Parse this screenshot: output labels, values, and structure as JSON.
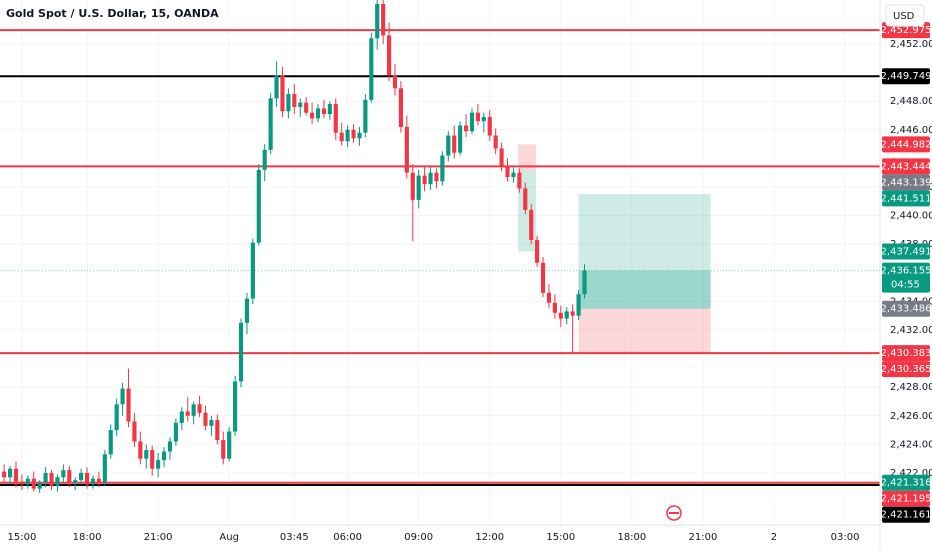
{
  "chart_data": {
    "type": "candlestick",
    "title": "Gold Spot / U.S. Dollar, 15, OANDA",
    "currency": "USD",
    "up_color": "#089981",
    "down_color": "#f23645",
    "ylim": [
      2418.36,
      2455.08
    ],
    "xlim": [
      -3.7,
      144.9
    ],
    "yticks": [
      {
        "value": 2422,
        "label": "2,422.000"
      },
      {
        "value": 2424,
        "label": "2,424.000"
      },
      {
        "value": 2426,
        "label": "2,426.000"
      },
      {
        "value": 2428,
        "label": "2,428.000"
      },
      {
        "value": 2432,
        "label": "2,432.000"
      },
      {
        "value": 2434,
        "label": "2,434.000"
      },
      {
        "value": 2438,
        "label": "2,438.000"
      },
      {
        "value": 2440,
        "label": "2,440.000"
      },
      {
        "value": 2442,
        "label": "2,442.000"
      },
      {
        "value": 2446,
        "label": "2,446.000"
      },
      {
        "value": 2448,
        "label": "2,448.000"
      },
      {
        "value": 2452,
        "label": "2,452.000"
      }
    ],
    "xticks": [
      {
        "value": 0,
        "label": "15:00"
      },
      {
        "value": 11,
        "label": "18:00"
      },
      {
        "value": 23,
        "label": "21:00"
      },
      {
        "value": 35,
        "label": "Aug"
      },
      {
        "value": 46,
        "label": "03:45"
      },
      {
        "value": 55,
        "label": "06:00"
      },
      {
        "value": 67,
        "label": "09:00"
      },
      {
        "value": 79,
        "label": "12:00"
      },
      {
        "value": 91,
        "label": "15:00"
      },
      {
        "value": 103,
        "label": "18:00"
      },
      {
        "value": 115,
        "label": "21:00"
      },
      {
        "value": 127,
        "label": "2"
      },
      {
        "value": 139,
        "label": "03:00"
      }
    ],
    "x": [
      -3,
      -2,
      -1,
      0,
      1,
      2,
      3,
      4,
      5,
      6,
      7,
      8,
      9,
      10,
      11,
      12,
      13,
      14,
      15,
      16,
      17,
      18,
      19,
      20,
      21,
      22,
      23,
      24,
      25,
      26,
      27,
      28,
      29,
      30,
      31,
      32,
      33,
      34,
      35,
      36,
      37,
      38,
      39,
      40,
      41,
      42,
      43,
      44,
      45,
      46,
      47,
      48,
      49,
      50,
      51,
      52,
      53,
      54,
      55,
      56,
      57,
      58,
      59,
      60,
      61,
      62,
      63,
      64,
      65,
      66,
      67,
      68,
      69,
      70,
      71,
      72,
      73,
      74,
      75,
      76,
      77,
      78,
      79,
      80,
      81,
      82,
      83,
      84,
      85,
      86,
      87,
      88,
      89,
      90,
      91,
      92,
      93,
      94,
      95
    ],
    "candles": [
      [
        2422.1,
        2422.6,
        2421.4,
        2421.7
      ],
      [
        2421.7,
        2422.5,
        2421.2,
        2422.3
      ],
      [
        2422.3,
        2422.8,
        2421.0,
        2421.4
      ],
      [
        2421.4,
        2421.9,
        2420.8,
        2421.2
      ],
      [
        2421.2,
        2421.8,
        2420.9,
        2421.6
      ],
      [
        2421.6,
        2422.1,
        2420.7,
        2420.9
      ],
      [
        2420.9,
        2421.5,
        2420.6,
        2421.3
      ],
      [
        2421.3,
        2422.4,
        2421.0,
        2422.0
      ],
      [
        2422.0,
        2422.2,
        2420.8,
        2421.1
      ],
      [
        2421.1,
        2421.9,
        2420.7,
        2421.7
      ],
      [
        2421.7,
        2422.6,
        2421.3,
        2422.2
      ],
      [
        2422.2,
        2422.5,
        2421.0,
        2421.3
      ],
      [
        2421.3,
        2421.7,
        2420.8,
        2421.5
      ],
      [
        2421.5,
        2422.3,
        2421.2,
        2422.0
      ],
      [
        2422.0,
        2422.4,
        2420.9,
        2421.2
      ],
      [
        2421.2,
        2421.8,
        2420.9,
        2421.6
      ],
      [
        2421.6,
        2422.1,
        2421.0,
        2421.3
      ],
      [
        2421.3,
        2423.6,
        2421.1,
        2423.3
      ],
      [
        2423.3,
        2425.4,
        2423.0,
        2425.0
      ],
      [
        2425.0,
        2427.2,
        2424.6,
        2426.8
      ],
      [
        2426.8,
        2428.3,
        2426.0,
        2427.9
      ],
      [
        2427.9,
        2429.3,
        2425.2,
        2425.6
      ],
      [
        2425.6,
        2426.2,
        2423.8,
        2424.2
      ],
      [
        2424.2,
        2424.9,
        2422.6,
        2423.0
      ],
      [
        2423.0,
        2424.0,
        2422.3,
        2423.6
      ],
      [
        2423.6,
        2423.9,
        2421.8,
        2422.3
      ],
      [
        2422.3,
        2423.4,
        2421.7,
        2422.9
      ],
      [
        2422.9,
        2423.8,
        2422.4,
        2423.5
      ],
      [
        2423.5,
        2424.5,
        2422.9,
        2424.2
      ],
      [
        2424.2,
        2425.8,
        2423.9,
        2425.5
      ],
      [
        2425.5,
        2426.6,
        2425.0,
        2426.3
      ],
      [
        2426.3,
        2427.3,
        2425.6,
        2426.0
      ],
      [
        2426.0,
        2427.0,
        2425.4,
        2426.8
      ],
      [
        2426.8,
        2427.4,
        2425.9,
        2426.2
      ],
      [
        2426.2,
        2426.7,
        2425.0,
        2425.3
      ],
      [
        2425.3,
        2426.0,
        2424.6,
        2425.7
      ],
      [
        2425.7,
        2426.1,
        2424.0,
        2424.3
      ],
      [
        2424.3,
        2424.9,
        2422.6,
        2423.0
      ],
      [
        2423.0,
        2425.2,
        2422.8,
        2424.9
      ],
      [
        2424.9,
        2428.8,
        2424.6,
        2428.4
      ],
      [
        2428.4,
        2432.8,
        2428.0,
        2432.5
      ],
      [
        2432.5,
        2434.6,
        2431.7,
        2434.2
      ],
      [
        2434.2,
        2438.4,
        2433.8,
        2438.1
      ],
      [
        2438.1,
        2443.6,
        2437.9,
        2443.2
      ],
      [
        2443.2,
        2445.0,
        2442.4,
        2444.6
      ],
      [
        2444.6,
        2448.6,
        2444.3,
        2448.2
      ],
      [
        2448.2,
        2450.8,
        2447.6,
        2449.8
      ],
      [
        2449.8,
        2450.4,
        2446.9,
        2447.3
      ],
      [
        2447.3,
        2448.9,
        2446.8,
        2448.5
      ],
      [
        2448.5,
        2449.2,
        2447.1,
        2447.6
      ],
      [
        2447.6,
        2448.2,
        2446.9,
        2447.9
      ],
      [
        2447.9,
        2448.3,
        2447.0,
        2447.2
      ],
      [
        2447.2,
        2447.9,
        2446.4,
        2446.8
      ],
      [
        2446.8,
        2447.8,
        2446.5,
        2447.5
      ],
      [
        2447.5,
        2448.1,
        2446.8,
        2447.1
      ],
      [
        2447.1,
        2448.0,
        2446.7,
        2447.8
      ],
      [
        2447.8,
        2448.2,
        2445.3,
        2445.8
      ],
      [
        2445.8,
        2446.5,
        2444.9,
        2445.2
      ],
      [
        2445.2,
        2446.3,
        2444.8,
        2446.0
      ],
      [
        2446.0,
        2446.4,
        2445.1,
        2445.4
      ],
      [
        2445.4,
        2446.2,
        2444.9,
        2445.8
      ],
      [
        2445.8,
        2448.5,
        2445.5,
        2448.1
      ],
      [
        2448.1,
        2452.8,
        2447.9,
        2452.4
      ],
      [
        2452.4,
        2455.4,
        2451.6,
        2454.8
      ],
      [
        2454.8,
        2455.6,
        2452.0,
        2452.6
      ],
      [
        2452.6,
        2453.5,
        2449.4,
        2449.8
      ],
      [
        2449.8,
        2450.6,
        2448.4,
        2448.9
      ],
      [
        2448.9,
        2449.4,
        2445.8,
        2446.2
      ],
      [
        2446.2,
        2447.0,
        2442.6,
        2443.0
      ],
      [
        2443.0,
        2443.6,
        2438.2,
        2441.1
      ],
      [
        2441.1,
        2443.2,
        2440.5,
        2442.8
      ],
      [
        2442.8,
        2443.5,
        2441.7,
        2442.2
      ],
      [
        2442.2,
        2443.4,
        2441.8,
        2443.0
      ],
      [
        2443.0,
        2443.3,
        2441.9,
        2442.4
      ],
      [
        2442.4,
        2444.5,
        2442.1,
        2444.2
      ],
      [
        2444.2,
        2445.9,
        2443.8,
        2445.6
      ],
      [
        2445.6,
        2446.3,
        2444.0,
        2444.4
      ],
      [
        2444.4,
        2446.6,
        2444.2,
        2446.3
      ],
      [
        2446.3,
        2447.1,
        2445.5,
        2445.9
      ],
      [
        2445.9,
        2447.5,
        2445.7,
        2447.2
      ],
      [
        2447.2,
        2447.8,
        2446.3,
        2446.6
      ],
      [
        2446.6,
        2447.2,
        2445.8,
        2446.9
      ],
      [
        2446.9,
        2447.4,
        2445.2,
        2445.6
      ],
      [
        2445.6,
        2446.1,
        2444.3,
        2444.7
      ],
      [
        2444.7,
        2445.1,
        2443.1,
        2443.5
      ],
      [
        2443.5,
        2444.0,
        2442.4,
        2442.7
      ],
      [
        2442.7,
        2443.4,
        2442.3,
        2443.0
      ],
      [
        2443.0,
        2443.3,
        2441.6,
        2441.9
      ],
      [
        2441.9,
        2442.3,
        2440.1,
        2440.4
      ],
      [
        2440.4,
        2440.8,
        2438.0,
        2438.3
      ],
      [
        2438.3,
        2438.6,
        2436.4,
        2436.7
      ],
      [
        2436.7,
        2437.1,
        2434.3,
        2434.6
      ],
      [
        2434.6,
        2435.2,
        2433.5,
        2433.9
      ],
      [
        2433.9,
        2434.5,
        2432.8,
        2433.2
      ],
      [
        2433.2,
        2433.7,
        2432.2,
        2432.8
      ],
      [
        2432.8,
        2433.6,
        2432.4,
        2433.3
      ],
      [
        2433.3,
        2433.8,
        2430.4,
        2433.0
      ],
      [
        2433.0,
        2434.8,
        2432.7,
        2434.5
      ],
      [
        2434.5,
        2436.6,
        2434.2,
        2436.155
      ]
    ],
    "hlines": [
      {
        "value": 2452.975,
        "color": "#f23645"
      },
      {
        "value": 2449.749,
        "color": "#000000"
      },
      {
        "value": 2443.444,
        "color": "#f23645"
      },
      {
        "value": 2430.383,
        "color": "#f23645"
      },
      {
        "value": 2421.316,
        "color": "#f23645"
      },
      {
        "value": 2421.161,
        "color": "#000000"
      }
    ],
    "positions": [
      {
        "x": [
          83.8,
          86.8
        ],
        "stop": 2444.982,
        "entry": 2443.139,
        "target": 2437.491
      },
      {
        "x": [
          94.0,
          116.3
        ],
        "stop": 2430.383,
        "entry": 2433.486,
        "target": 2441.511,
        "current": 2436.155
      }
    ],
    "price_labels": [
      {
        "value": 2452.975,
        "label": "2,452.975",
        "color": "#f23645"
      },
      {
        "value": 2449.749,
        "label": "2,449.749",
        "color": "#000000"
      },
      {
        "value": 2444.982,
        "label": "2,444.982",
        "color": "#f23645"
      },
      {
        "value": 2443.444,
        "label": "2,443.444",
        "color": "#f23645"
      },
      {
        "value": 2443.139,
        "label": "2,443.139",
        "color": "#787b86"
      },
      {
        "value": 2441.511,
        "label": "2,441.511",
        "color": "#089981"
      },
      {
        "value": 2437.491,
        "label": "2,437.491",
        "color": "#089981"
      },
      {
        "value": 2436.155,
        "label": "2,436.155",
        "color": "#089981",
        "sub": "04:55"
      },
      {
        "value": 2433.486,
        "label": "2,433.486",
        "color": "#787b86"
      },
      {
        "value": 2430.383,
        "label": "2,430.383",
        "color": "#f23645"
      },
      {
        "value": 2430.365,
        "label": "2,430.365",
        "color": "#f23645"
      },
      {
        "value": 2421.316,
        "label": "2,421.316",
        "color": "#089981"
      },
      {
        "value": 2421.195,
        "label": "2,421.195",
        "color": "#f23645"
      },
      {
        "value": 2421.161,
        "label": "2,421.161",
        "color": "#000000"
      }
    ]
  }
}
